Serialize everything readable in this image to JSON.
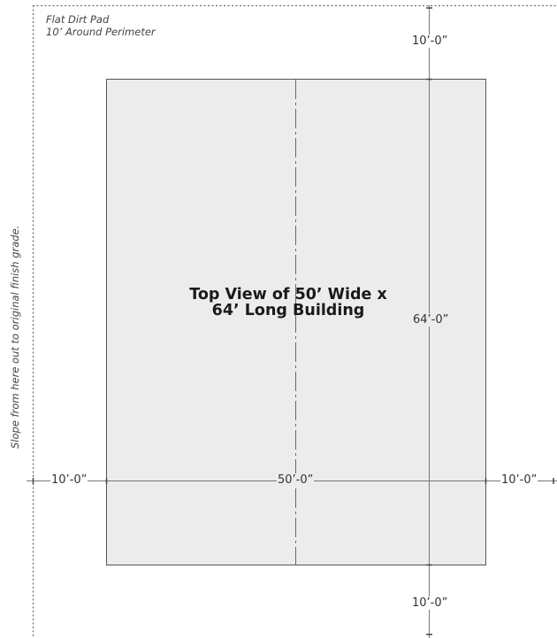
{
  "notes": {
    "pad_line_1": "Flat Dirt Pad",
    "pad_line_2": "10’ Around Perimeter",
    "slope": "Slope from here out to original finish grade."
  },
  "title": {
    "line_1": "Top View of 50’ Wide x",
    "line_2": "64’ Long Building"
  },
  "dimensions": {
    "top_setback": "10’-0”",
    "bottom_setback": "10’-0”",
    "left_setback": "10’-0”",
    "right_setback": "10’-0”",
    "building_width": "50’-0”",
    "building_length": "64’-0”"
  },
  "colors": {
    "building_fill": "#ececec",
    "outline": "#555555",
    "dimension_line": "#777777"
  }
}
